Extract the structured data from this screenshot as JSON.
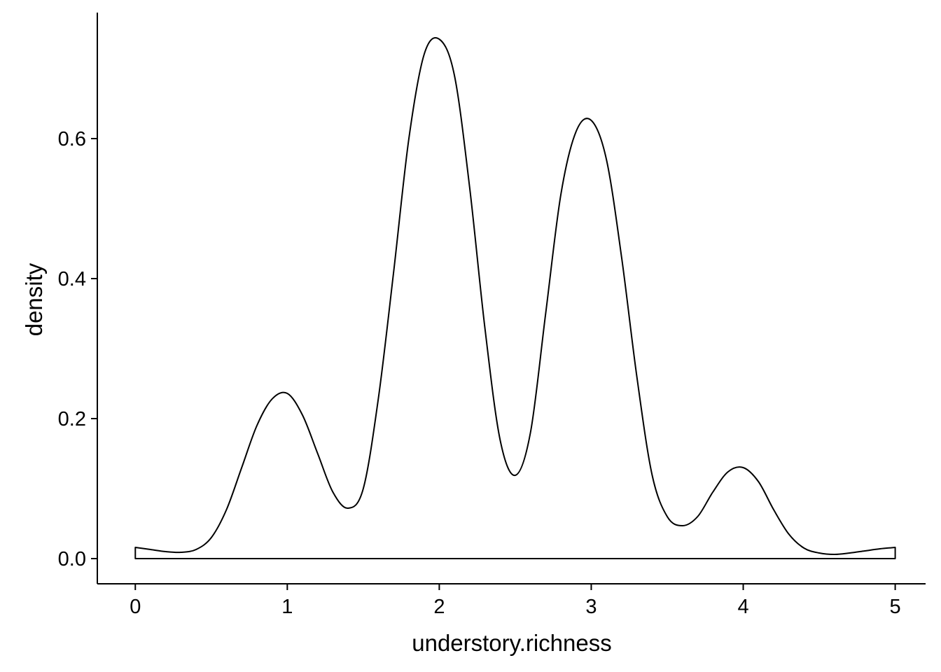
{
  "chart_data": {
    "type": "area",
    "title": "",
    "xlabel": "understory.richness",
    "ylabel": "density",
    "xlim": [
      -0.25,
      5.2
    ],
    "ylim": [
      -0.036,
      0.78
    ],
    "x_ticks": [
      0,
      1,
      2,
      3,
      4,
      5
    ],
    "x_tick_labels": [
      "0",
      "1",
      "2",
      "3",
      "4",
      "5"
    ],
    "y_ticks": [
      0.0,
      0.2,
      0.4,
      0.6
    ],
    "y_tick_labels": [
      "0.0",
      "0.2",
      "0.4",
      "0.6"
    ],
    "grid": false,
    "legend": "none",
    "line_color": "#000000",
    "fill_color": "#ffffff",
    "series": [
      {
        "x": [
          0,
          0.1,
          0.2,
          0.3,
          0.4,
          0.5,
          0.6,
          0.7,
          0.8,
          0.9,
          1.0,
          1.1,
          1.2,
          1.3,
          1.4,
          1.5,
          1.6,
          1.7,
          1.8,
          1.9,
          2.0,
          2.1,
          2.2,
          2.3,
          2.4,
          2.5,
          2.6,
          2.7,
          2.8,
          2.9,
          3.0,
          3.1,
          3.2,
          3.3,
          3.4,
          3.5,
          3.6,
          3.7,
          3.8,
          3.9,
          4.0,
          4.1,
          4.2,
          4.3,
          4.4,
          4.5,
          4.6,
          4.7,
          4.8,
          4.9,
          5.0
        ],
        "y": [
          0.016,
          0.013,
          0.01,
          0.009,
          0.013,
          0.03,
          0.07,
          0.13,
          0.19,
          0.228,
          0.236,
          0.205,
          0.15,
          0.095,
          0.072,
          0.1,
          0.23,
          0.41,
          0.6,
          0.72,
          0.742,
          0.69,
          0.53,
          0.33,
          0.17,
          0.119,
          0.18,
          0.35,
          0.52,
          0.61,
          0.626,
          0.57,
          0.43,
          0.26,
          0.12,
          0.06,
          0.047,
          0.06,
          0.095,
          0.124,
          0.13,
          0.11,
          0.07,
          0.035,
          0.015,
          0.008,
          0.006,
          0.008,
          0.011,
          0.014,
          0.016
        ]
      }
    ]
  }
}
